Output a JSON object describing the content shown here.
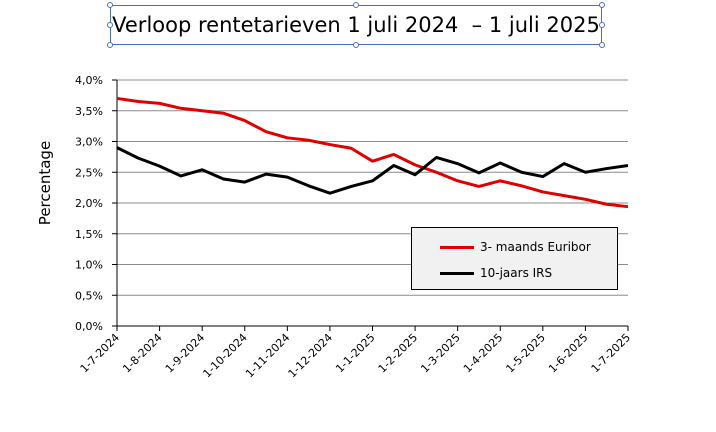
{
  "chart_data": {
    "type": "line",
    "title": "Verloop rentetarieven 1 juli 2024  – 1 juli 2025",
    "ylabel": "Percentage",
    "xlabel": "",
    "ylim": [
      0,
      4
    ],
    "y_ticks": [
      "0,0%",
      "0,5%",
      "1,0%",
      "1,5%",
      "2,0%",
      "2,5%",
      "3,0%",
      "3,5%",
      "4,0%"
    ],
    "x_ticks": [
      "1-7-2024",
      "1-8-2024",
      "1-9-2024",
      "1-10-2024",
      "1-11-2024",
      "1-12-2024",
      "1-1-2025",
      "1-2-2025",
      "1-3-2025",
      "1-4-2025",
      "1-5-2025",
      "1-6-2025",
      "1-7-2025"
    ],
    "grid": "horizontal",
    "legend_position": "bottom-right",
    "series": [
      {
        "name": "3- maands Euribor",
        "color": "#e00000",
        "x": [
          0,
          0.5,
          1,
          1.5,
          2,
          2.5,
          3,
          3.5,
          4,
          4.5,
          5,
          5.5,
          6,
          6.5,
          7,
          7.5,
          8,
          8.5,
          9,
          9.5,
          10,
          10.5,
          11,
          11.5,
          12
        ],
        "values": [
          3.7,
          3.65,
          3.62,
          3.54,
          3.5,
          3.46,
          3.34,
          3.16,
          3.06,
          3.02,
          2.95,
          2.89,
          2.68,
          2.79,
          2.62,
          2.5,
          2.36,
          2.27,
          2.36,
          2.28,
          2.18,
          2.12,
          2.06,
          1.98,
          1.94
        ]
      },
      {
        "name": "10-jaars IRS",
        "color": "#000000",
        "x": [
          0,
          0.5,
          1,
          1.5,
          2,
          2.5,
          3,
          3.5,
          4,
          4.5,
          5,
          5.5,
          6,
          6.5,
          7,
          7.5,
          8,
          8.5,
          9,
          9.5,
          10,
          10.5,
          11,
          11.5,
          12
        ],
        "values": [
          2.9,
          2.73,
          2.6,
          2.44,
          2.54,
          2.39,
          2.34,
          2.47,
          2.42,
          2.28,
          2.16,
          2.27,
          2.36,
          2.61,
          2.46,
          2.74,
          2.64,
          2.49,
          2.65,
          2.5,
          2.43,
          2.64,
          2.5,
          2.56,
          2.61
        ]
      }
    ]
  }
}
